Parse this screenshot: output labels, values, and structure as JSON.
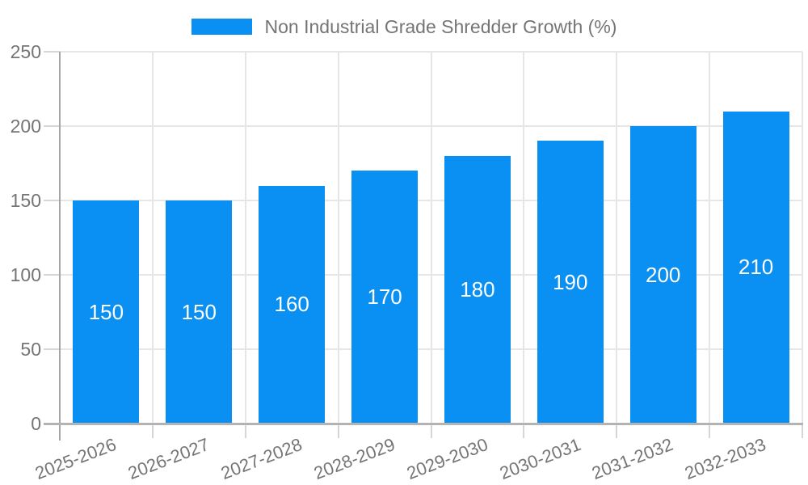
{
  "legend": {
    "label": "Non Industrial Grade Shredder Growth (%)"
  },
  "chart_data": {
    "type": "bar",
    "title": "",
    "series_name": "Non Industrial Grade Shredder Growth (%)",
    "categories": [
      "2025-2026",
      "2026-2027",
      "2027-2028",
      "2028-2029",
      "2029-2030",
      "2030-2031",
      "2031-2032",
      "2032-2033"
    ],
    "values": [
      150,
      150,
      160,
      170,
      180,
      190,
      200,
      210
    ],
    "bar_labels": [
      "150",
      "150",
      "160",
      "170",
      "180",
      "190",
      "200",
      "210"
    ],
    "xlabel": "",
    "ylabel": "",
    "ylim": [
      0,
      250
    ],
    "yticks": [
      0,
      50,
      100,
      150,
      200,
      250
    ],
    "grid": true,
    "legend_position": "top-center",
    "colors": {
      "bar": "#0a8ff2",
      "bar_label": "#ffffff",
      "gridline": "#e6e6e6",
      "tick": "#d6d6d6",
      "y_axis_line": "#a6a6a6",
      "baseline": "#b3b3b3",
      "axis_text": "#757575"
    }
  }
}
